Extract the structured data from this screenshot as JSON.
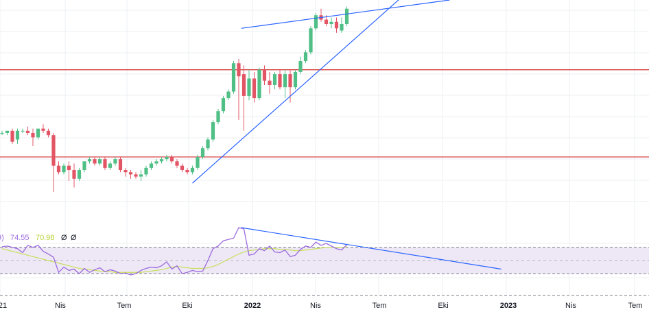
{
  "colors": {
    "up": "#26a69a",
    "up_body": "#4fbf86",
    "down": "#ef5350",
    "down_body": "#e25565",
    "hline": "#d32f2f",
    "trendline": "#2962ff",
    "rsi": "#9c6ade",
    "rsi_ma": "#c9e05a",
    "rsi_band": "#ede7f6",
    "grid": "#eceff3"
  },
  "rsi_legend": {
    "prefix": "9)",
    "rsi_value": "74.55",
    "ma_value": "70.98",
    "extra1": "Ø",
    "extra2": "Ø"
  },
  "chart_data": {
    "type": "candlestick",
    "x_axis_labels": [
      "21",
      "Nis",
      "Tem",
      "Eki",
      "2022",
      "Nis",
      "Tem",
      "Eki",
      "2023",
      "Nis",
      "Tem"
    ],
    "price": {
      "y_range": [
        0,
        100
      ],
      "horizontal_levels": [
        68,
        28
      ],
      "candles": [
        [
          39,
          40,
          38,
          39
        ],
        [
          39,
          40,
          38,
          40
        ],
        [
          40,
          41,
          34,
          35
        ],
        [
          36,
          41,
          34,
          40
        ],
        [
          40,
          41,
          39,
          40
        ],
        [
          40,
          42,
          38,
          39
        ],
        [
          39,
          41,
          33,
          37
        ],
        [
          37,
          41,
          36,
          41
        ],
        [
          41,
          43,
          39,
          40
        ],
        [
          40,
          41,
          37,
          38
        ],
        [
          38,
          39,
          12,
          24
        ],
        [
          24,
          26,
          20,
          21
        ],
        [
          21,
          25,
          20,
          24
        ],
        [
          24,
          26,
          17,
          22
        ],
        [
          22,
          25,
          14,
          18
        ],
        [
          18,
          23,
          17,
          22
        ],
        [
          22,
          26,
          21,
          26
        ],
        [
          26,
          28,
          25,
          27
        ],
        [
          27,
          28,
          24,
          25
        ],
        [
          25,
          28,
          24,
          27
        ],
        [
          27,
          28,
          22,
          23
        ],
        [
          23,
          26,
          22,
          25
        ],
        [
          25,
          28,
          24,
          27
        ],
        [
          27,
          28,
          21,
          22
        ],
        [
          22,
          23,
          19,
          21
        ],
        [
          21,
          22,
          18,
          20
        ],
        [
          20,
          21,
          18,
          19
        ],
        [
          19,
          22,
          17,
          20
        ],
        [
          20,
          24,
          19,
          23
        ],
        [
          23,
          26,
          22,
          25
        ],
        [
          25,
          27,
          24,
          26
        ],
        [
          26,
          28,
          25,
          27
        ],
        [
          27,
          29,
          26,
          28
        ],
        [
          28,
          29,
          25,
          26
        ],
        [
          26,
          27,
          23,
          24
        ],
        [
          24,
          25,
          21,
          22
        ],
        [
          22,
          23,
          20,
          21
        ],
        [
          21,
          24,
          20,
          23
        ],
        [
          23,
          29,
          22,
          28
        ],
        [
          28,
          33,
          27,
          32
        ],
        [
          32,
          37,
          31,
          36
        ],
        [
          36,
          45,
          35,
          44
        ],
        [
          44,
          50,
          43,
          49
        ],
        [
          49,
          56,
          48,
          55
        ],
        [
          55,
          59,
          54,
          58
        ],
        [
          58,
          72,
          57,
          71
        ],
        [
          71,
          73,
          45,
          65
        ],
        [
          66,
          70,
          40,
          56
        ],
        [
          56,
          68,
          54,
          64
        ],
        [
          64,
          67,
          53,
          55
        ],
        [
          55,
          69,
          54,
          68
        ],
        [
          68,
          70,
          61,
          63
        ],
        [
          63,
          67,
          57,
          61
        ],
        [
          61,
          67,
          59,
          66
        ],
        [
          66,
          68,
          59,
          60
        ],
        [
          60,
          68,
          55,
          66
        ],
        [
          66,
          68,
          53,
          60
        ],
        [
          60,
          68,
          59,
          67
        ],
        [
          67,
          74,
          66,
          72
        ],
        [
          72,
          77,
          71,
          76
        ],
        [
          76,
          88,
          75,
          87
        ],
        [
          87,
          94,
          86,
          93
        ],
        [
          93,
          96,
          90,
          91
        ],
        [
          91,
          93,
          88,
          89
        ],
        [
          89,
          92,
          87,
          90
        ],
        [
          90,
          92,
          85,
          87
        ],
        [
          86,
          92,
          85,
          89
        ],
        [
          89,
          97,
          88,
          96
        ]
      ],
      "trendlines": [
        {
          "from": [
            46.5,
            87
          ],
          "to": [
            87,
            100
          ]
        },
        {
          "from": [
            37,
            16
          ],
          "to": [
            78,
            102
          ]
        }
      ]
    },
    "rsi": {
      "y_range": [
        0,
        100
      ],
      "dashed_levels": [
        70,
        30
      ],
      "values": [
        71,
        72,
        70,
        68,
        62,
        73,
        70,
        73,
        64,
        60,
        55,
        32,
        40,
        35,
        37,
        30,
        38,
        32,
        36,
        39,
        33,
        36,
        34,
        30,
        31,
        28,
        30,
        35,
        38,
        40,
        39,
        42,
        48,
        37,
        42,
        30,
        32,
        35,
        33,
        34,
        50,
        68,
        72,
        80,
        82,
        84,
        100,
        98,
        58,
        60,
        68,
        65,
        72,
        63,
        62,
        66,
        56,
        58,
        67,
        72,
        70,
        78,
        73,
        76,
        72,
        68,
        66,
        74
      ],
      "ma_values": [
        68,
        66,
        64,
        62,
        60,
        58,
        56,
        54,
        52,
        50,
        48,
        46,
        44,
        42,
        40,
        38,
        37,
        36,
        35,
        34,
        33,
        33,
        32,
        32,
        32,
        32,
        32,
        32,
        33,
        34,
        35,
        36,
        38,
        40,
        41,
        40,
        39,
        38,
        38,
        38,
        39,
        41,
        44,
        48,
        52,
        56,
        60,
        63,
        65,
        66,
        67,
        68,
        68,
        68,
        67,
        67,
        66,
        65,
        65,
        66,
        67,
        68,
        69,
        70,
        70,
        70,
        70,
        71
      ],
      "trendline": {
        "from": [
          46.5,
          100
        ],
        "to": [
          97,
          37
        ]
      }
    }
  }
}
